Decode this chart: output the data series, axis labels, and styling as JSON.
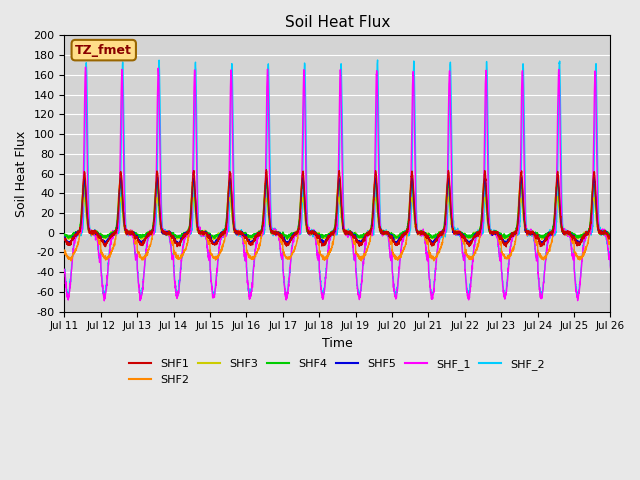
{
  "title": "Soil Heat Flux",
  "ylabel": "Soil Heat Flux",
  "xlabel": "Time",
  "ylim": [
    -80,
    200
  ],
  "n_days": 15,
  "series_colors": {
    "SHF1": "#cc0000",
    "SHF2": "#ff8800",
    "SHF3": "#cccc00",
    "SHF4": "#00cc00",
    "SHF5": "#0000dd",
    "SHF_1": "#ff00ff",
    "SHF_2": "#00ccff"
  },
  "xtick_labels": [
    "Jul 11",
    "Jul 12",
    "Jul 13",
    "Jul 14",
    "Jul 15",
    "Jul 16",
    "Jul 17",
    "Jul 18",
    "Jul 19",
    "Jul 20",
    "Jul 21",
    "Jul 22",
    "Jul 23",
    "Jul 24",
    "Jul 25",
    "Jul 26"
  ],
  "ytick_values": [
    -80,
    -60,
    -40,
    -20,
    0,
    20,
    40,
    60,
    80,
    100,
    120,
    140,
    160,
    180,
    200
  ],
  "annotation_text": "TZ_fmet",
  "line_width": 1.0
}
